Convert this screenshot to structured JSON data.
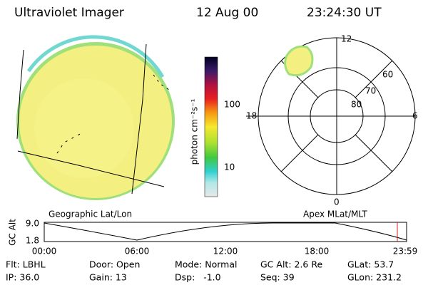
{
  "header": {
    "title": "Ultraviolet Imager",
    "date": "12 Aug 00",
    "time": "23:24:30 UT"
  },
  "colorbar": {
    "label": "photon cm⁻²s⁻¹",
    "tick_labels": [
      "100",
      "10"
    ]
  },
  "polar": {
    "mlt_labels": [
      "12",
      "18",
      "6",
      "0"
    ],
    "lat_labels": [
      "60",
      "70",
      "80"
    ]
  },
  "altitude_plot": {
    "left_label": "Geographic Lat/Lon",
    "right_label": "Apex MLat/MLT",
    "y_label": "GC Alt",
    "y_ticks": [
      "9.0",
      "1.8"
    ],
    "x_ticks": [
      "00:00",
      "06:00",
      "12:00",
      "18:00",
      "23:59"
    ]
  },
  "info": {
    "rows": [
      [
        "Flt: LBHL",
        "Door: Open",
        "Mode: Normal",
        "GC Alt: 2.6 Re",
        "GLat: 53.7"
      ],
      [
        "IP: 36.0",
        "Gain: 13",
        "Dsp:   -1.0",
        "Seq: 39",
        "GLon: 231.2"
      ]
    ]
  }
}
